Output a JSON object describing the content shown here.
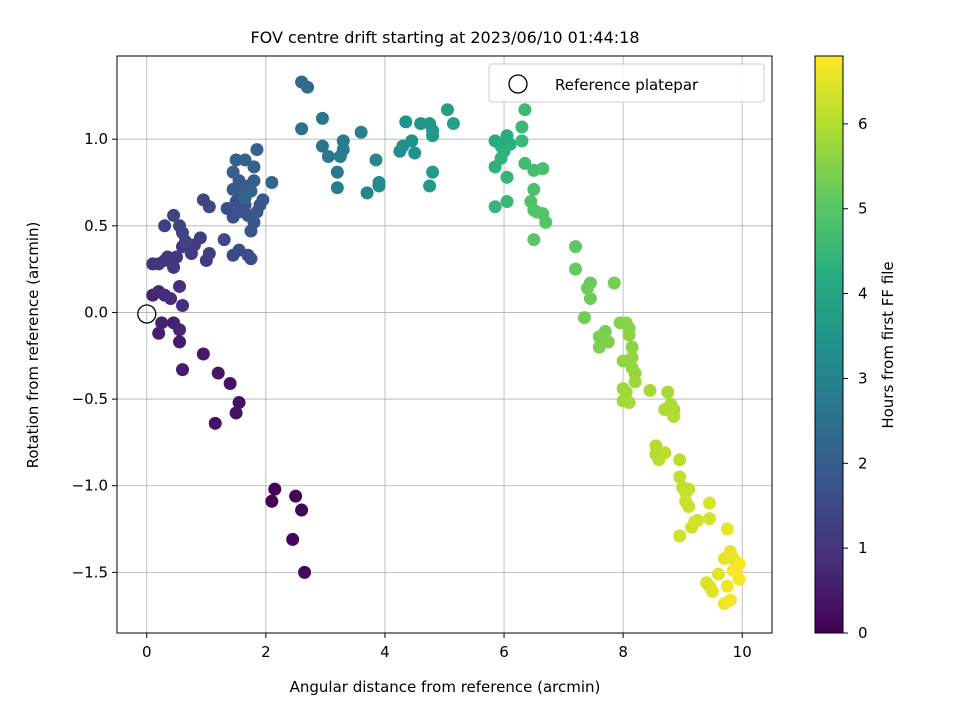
{
  "chart_data": {
    "type": "scatter",
    "title": "FOV centre drift starting at 2023/06/10 01:44:18",
    "xlabel": "Angular distance from reference (arcmin)",
    "ylabel": "Rotation from reference (arcmin)",
    "xlim": [
      -0.5,
      10.5
    ],
    "ylim": [
      -1.85,
      1.48
    ],
    "xticks": [
      0,
      2,
      4,
      6,
      8,
      10
    ],
    "yticks": [
      -1.5,
      -1.0,
      -0.5,
      0.0,
      0.5,
      1.0
    ],
    "xtick_labels": [
      "0",
      "2",
      "4",
      "6",
      "8",
      "10"
    ],
    "ytick_labels": [
      "−1.5",
      "−1.0",
      "−0.5",
      "0.0",
      "0.5",
      "1.0"
    ],
    "grid": true,
    "legend": {
      "location": "top-right",
      "entries": [
        "Reference platepar"
      ]
    },
    "reference_point": {
      "x": 0.0,
      "y": 0.0,
      "label": "Reference platepar"
    },
    "colorbar": {
      "label": "Hours from first FF file",
      "colormap": "viridis",
      "range": [
        0,
        6.8
      ],
      "ticks": [
        0,
        1,
        2,
        3,
        4,
        5,
        6
      ],
      "tick_labels": [
        "0",
        "1",
        "2",
        "3",
        "4",
        "5",
        "6"
      ]
    },
    "points": [
      [
        2.1,
        -1.09,
        0.05
      ],
      [
        2.15,
        -1.02,
        0.05
      ],
      [
        2.5,
        -1.06,
        0.1
      ],
      [
        2.6,
        -1.14,
        0.1
      ],
      [
        2.45,
        -1.31,
        0.1
      ],
      [
        2.65,
        -1.5,
        0.15
      ],
      [
        1.15,
        -0.64,
        0.3
      ],
      [
        1.5,
        -0.58,
        0.3
      ],
      [
        1.55,
        -0.52,
        0.35
      ],
      [
        1.4,
        -0.41,
        0.35
      ],
      [
        1.2,
        -0.35,
        0.4
      ],
      [
        0.95,
        -0.24,
        0.45
      ],
      [
        0.6,
        -0.33,
        0.5
      ],
      [
        0.55,
        -0.17,
        0.55
      ],
      [
        0.2,
        -0.12,
        0.6
      ],
      [
        0.25,
        -0.06,
        0.65
      ],
      [
        0.45,
        -0.06,
        0.65
      ],
      [
        0.55,
        -0.1,
        0.7
      ],
      [
        0.1,
        0.1,
        0.7
      ],
      [
        0.2,
        0.12,
        0.75
      ],
      [
        0.3,
        0.1,
        0.8
      ],
      [
        0.4,
        0.08,
        0.85
      ],
      [
        0.6,
        0.04,
        0.9
      ],
      [
        0.55,
        0.15,
        0.9
      ],
      [
        0.1,
        0.28,
        0.95
      ],
      [
        0.2,
        0.28,
        1.0
      ],
      [
        0.3,
        0.3,
        1.0
      ],
      [
        0.35,
        0.32,
        1.05
      ],
      [
        0.45,
        0.26,
        1.05
      ],
      [
        0.5,
        0.32,
        1.1
      ],
      [
        0.6,
        0.38,
        1.1
      ],
      [
        0.75,
        0.34,
        1.15
      ],
      [
        0.8,
        0.39,
        1.15
      ],
      [
        0.9,
        0.43,
        1.2
      ],
      [
        1.0,
        0.3,
        1.2
      ],
      [
        1.05,
        0.34,
        1.25
      ],
      [
        0.3,
        0.5,
        1.25
      ],
      [
        0.45,
        0.56,
        1.3
      ],
      [
        0.55,
        0.5,
        1.3
      ],
      [
        0.6,
        0.46,
        1.35
      ],
      [
        0.65,
        0.41,
        1.35
      ],
      [
        0.95,
        0.65,
        1.4
      ],
      [
        1.05,
        0.61,
        1.45
      ],
      [
        1.3,
        0.42,
        1.5
      ],
      [
        1.45,
        0.33,
        1.5
      ],
      [
        1.55,
        0.36,
        1.55
      ],
      [
        1.7,
        0.33,
        1.55
      ],
      [
        1.75,
        0.31,
        1.6
      ],
      [
        1.35,
        0.6,
        1.6
      ],
      [
        1.45,
        0.55,
        1.65
      ],
      [
        1.5,
        0.64,
        1.65
      ],
      [
        1.55,
        0.58,
        1.7
      ],
      [
        1.6,
        0.66,
        1.7
      ],
      [
        1.65,
        0.62,
        1.75
      ],
      [
        1.7,
        0.56,
        1.75
      ],
      [
        1.75,
        0.47,
        1.8
      ],
      [
        1.8,
        0.52,
        1.8
      ],
      [
        1.85,
        0.58,
        1.85
      ],
      [
        1.9,
        0.62,
        1.85
      ],
      [
        1.95,
        0.65,
        1.9
      ],
      [
        1.45,
        0.71,
        1.9
      ],
      [
        1.55,
        0.76,
        1.95
      ],
      [
        1.6,
        0.72,
        1.95
      ],
      [
        1.7,
        0.73,
        2.0
      ],
      [
        1.8,
        0.76,
        2.0
      ],
      [
        1.45,
        0.81,
        2.05
      ],
      [
        1.5,
        0.88,
        2.05
      ],
      [
        1.65,
        0.88,
        2.1
      ],
      [
        1.8,
        0.84,
        2.1
      ],
      [
        1.85,
        0.94,
        2.15
      ],
      [
        1.75,
        0.7,
        2.15
      ],
      [
        1.65,
        0.66,
        2.2
      ],
      [
        2.1,
        0.75,
        2.25
      ],
      [
        2.6,
        1.33,
        2.35
      ],
      [
        2.7,
        1.3,
        2.4
      ],
      [
        2.6,
        1.06,
        2.5
      ],
      [
        2.95,
        1.12,
        2.6
      ],
      [
        2.95,
        0.96,
        2.65
      ],
      [
        3.05,
        0.9,
        2.7
      ],
      [
        3.2,
        0.81,
        2.75
      ],
      [
        3.25,
        0.9,
        2.8
      ],
      [
        3.3,
        0.94,
        2.8
      ],
      [
        3.3,
        0.99,
        2.85
      ],
      [
        3.2,
        0.72,
        2.9
      ],
      [
        3.6,
        1.04,
        3.0
      ],
      [
        3.85,
        0.88,
        3.05
      ],
      [
        3.7,
        0.69,
        3.1
      ],
      [
        3.9,
        0.73,
        3.15
      ],
      [
        3.9,
        0.75,
        3.2
      ],
      [
        4.25,
        0.93,
        3.3
      ],
      [
        4.3,
        0.96,
        3.35
      ],
      [
        4.45,
        0.99,
        3.4
      ],
      [
        4.35,
        1.1,
        3.45
      ],
      [
        4.5,
        0.92,
        3.45
      ],
      [
        4.6,
        1.09,
        3.5
      ],
      [
        4.75,
        1.09,
        3.55
      ],
      [
        4.8,
        1.05,
        3.6
      ],
      [
        4.8,
        1.02,
        3.6
      ],
      [
        4.75,
        0.73,
        3.65
      ],
      [
        4.8,
        0.81,
        3.7
      ],
      [
        5.05,
        1.17,
        3.8
      ],
      [
        5.15,
        1.09,
        3.85
      ],
      [
        5.85,
        0.99,
        4.1
      ],
      [
        5.95,
        0.96,
        4.15
      ],
      [
        6.05,
        1.02,
        4.2
      ],
      [
        6.1,
        0.97,
        4.25
      ],
      [
        6.0,
        0.93,
        4.3
      ],
      [
        5.85,
        0.84,
        4.35
      ],
      [
        5.95,
        0.89,
        4.4
      ],
      [
        6.05,
        0.78,
        4.45
      ],
      [
        5.85,
        0.61,
        4.5
      ],
      [
        6.05,
        0.64,
        4.5
      ],
      [
        6.3,
        0.99,
        4.55
      ],
      [
        6.3,
        1.07,
        4.55
      ],
      [
        6.35,
        1.17,
        4.6
      ],
      [
        6.35,
        0.86,
        4.65
      ],
      [
        6.5,
        0.82,
        4.7
      ],
      [
        6.65,
        0.83,
        4.75
      ],
      [
        6.5,
        0.71,
        4.8
      ],
      [
        6.45,
        0.64,
        4.85
      ],
      [
        6.55,
        0.58,
        4.85
      ],
      [
        6.5,
        0.59,
        4.9
      ],
      [
        6.65,
        0.57,
        4.9
      ],
      [
        6.7,
        0.52,
        4.95
      ],
      [
        6.5,
        0.42,
        5.0
      ],
      [
        7.2,
        0.38,
        5.1
      ],
      [
        7.2,
        0.25,
        5.15
      ],
      [
        7.45,
        0.17,
        5.2
      ],
      [
        7.4,
        0.14,
        5.25
      ],
      [
        7.45,
        0.08,
        5.25
      ],
      [
        7.35,
        -0.03,
        5.3
      ],
      [
        7.85,
        0.17,
        5.35
      ],
      [
        7.7,
        -0.11,
        5.35
      ],
      [
        7.7,
        -0.16,
        5.4
      ],
      [
        7.6,
        -0.14,
        5.4
      ],
      [
        7.6,
        -0.2,
        5.45
      ],
      [
        7.75,
        -0.17,
        5.45
      ],
      [
        7.95,
        -0.06,
        5.5
      ],
      [
        8.05,
        -0.06,
        5.55
      ],
      [
        8.1,
        -0.09,
        5.55
      ],
      [
        8.1,
        -0.13,
        5.6
      ],
      [
        8.15,
        -0.2,
        5.6
      ],
      [
        8.0,
        -0.28,
        5.65
      ],
      [
        8.15,
        -0.26,
        5.65
      ],
      [
        8.15,
        -0.32,
        5.7
      ],
      [
        8.2,
        -0.35,
        5.7
      ],
      [
        8.2,
        -0.4,
        5.75
      ],
      [
        8.0,
        -0.44,
        5.75
      ],
      [
        8.05,
        -0.46,
        5.8
      ],
      [
        8.0,
        -0.51,
        5.8
      ],
      [
        8.1,
        -0.52,
        5.85
      ],
      [
        8.45,
        -0.45,
        5.85
      ],
      [
        8.75,
        -0.46,
        5.9
      ],
      [
        8.8,
        -0.53,
        5.9
      ],
      [
        8.7,
        -0.56,
        5.95
      ],
      [
        8.85,
        -0.56,
        5.95
      ],
      [
        8.85,
        -0.6,
        6.0
      ],
      [
        8.55,
        -0.77,
        6.0
      ],
      [
        8.55,
        -0.82,
        6.05
      ],
      [
        8.6,
        -0.85,
        6.05
      ],
      [
        8.7,
        -0.81,
        6.1
      ],
      [
        8.95,
        -0.85,
        6.1
      ],
      [
        8.95,
        -0.95,
        6.15
      ],
      [
        9.0,
        -1.01,
        6.15
      ],
      [
        9.05,
        -1.04,
        6.2
      ],
      [
        9.1,
        -1.02,
        6.2
      ],
      [
        9.05,
        -1.09,
        6.25
      ],
      [
        9.1,
        -1.12,
        6.25
      ],
      [
        8.95,
        -1.29,
        6.3
      ],
      [
        9.15,
        -1.24,
        6.3
      ],
      [
        9.2,
        -1.21,
        6.35
      ],
      [
        9.25,
        -1.2,
        6.35
      ],
      [
        9.45,
        -1.1,
        6.4
      ],
      [
        9.45,
        -1.19,
        6.4
      ],
      [
        9.4,
        -1.56,
        6.45
      ],
      [
        9.45,
        -1.58,
        6.45
      ],
      [
        9.5,
        -1.61,
        6.5
      ],
      [
        9.6,
        -1.51,
        6.5
      ],
      [
        9.75,
        -1.25,
        6.55
      ],
      [
        9.7,
        -1.42,
        6.55
      ],
      [
        9.8,
        -1.38,
        6.6
      ],
      [
        9.85,
        -1.42,
        6.6
      ],
      [
        9.75,
        -1.58,
        6.65
      ],
      [
        9.7,
        -1.68,
        6.65
      ],
      [
        9.8,
        -1.66,
        6.7
      ],
      [
        9.9,
        -1.48,
        6.7
      ],
      [
        9.95,
        -1.45,
        6.75
      ],
      [
        9.95,
        -1.54,
        6.75
      ],
      [
        9.85,
        -1.49,
        6.75
      ]
    ]
  }
}
